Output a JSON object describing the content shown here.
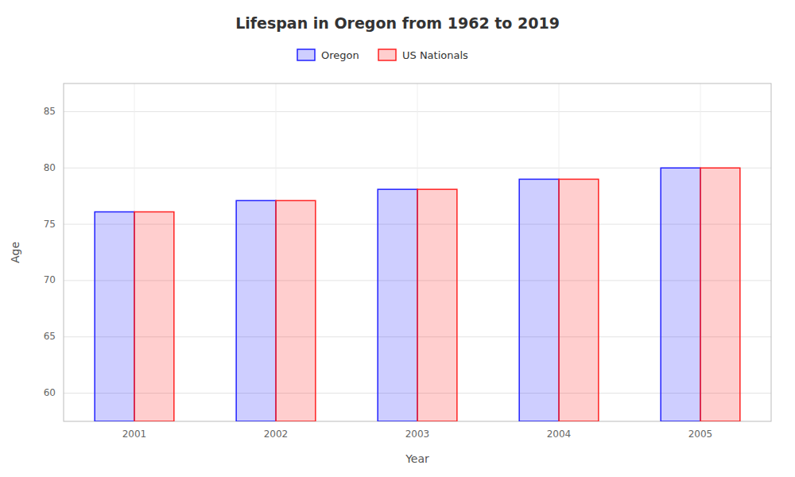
{
  "chart_data": {
    "type": "bar",
    "title": "Lifespan in Oregon from 1962 to 2019",
    "x_label": "Year",
    "y_label": "Age",
    "categories": [
      "2001",
      "2002",
      "2003",
      "2004",
      "2005"
    ],
    "series": [
      {
        "name": "Oregon",
        "color": "#2222ff",
        "values": [
          76.1,
          77.1,
          78.1,
          79.0,
          80.0
        ]
      },
      {
        "name": "US Nationals",
        "color": "#ff2222",
        "values": [
          76.1,
          77.1,
          78.1,
          79.0,
          80.0
        ]
      }
    ],
    "ylim": [
      57.5,
      87.5
    ],
    "yticks": [
      60,
      65,
      70,
      75,
      80,
      85
    ],
    "grid": true,
    "legend": "top"
  }
}
